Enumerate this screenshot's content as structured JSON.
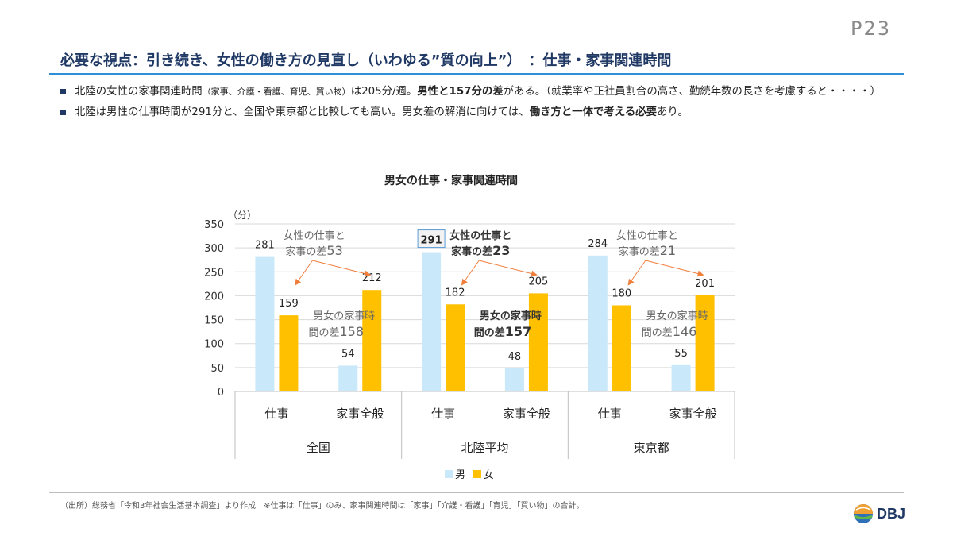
{
  "page": {
    "number": "P23"
  },
  "title": "必要な視点：引き続き、女性の働き方の見直し（いわゆる”質の向上”）　：仕事・家事関連時間",
  "bullets": [
    {
      "parts": [
        {
          "text": "北陸の女性の家事関連時間",
          "style": "normal"
        },
        {
          "text": "（家事、介護・看護、育児、買い物）",
          "style": "small"
        },
        {
          "text": "は205分/週。",
          "style": "normal"
        },
        {
          "text": "男性と157分の差",
          "style": "bold"
        },
        {
          "text": "がある。（就業率や正社員割合の高さ、勤続年数の長さを考慮すると・・・・）",
          "style": "normal"
        }
      ]
    },
    {
      "parts": [
        {
          "text": "北陸は男性の仕事時間が291分と、全国や東京都と比較しても高い。男女差の解消に向けては、",
          "style": "normal"
        },
        {
          "text": "働き方と一体で考える必要",
          "style": "bold"
        },
        {
          "text": "あり。",
          "style": "normal"
        }
      ]
    }
  ],
  "chart_data": {
    "type": "bar",
    "title": "男女の仕事・家事関連時間",
    "ylabel": "（分）",
    "ylim": [
      0,
      350
    ],
    "yticks": [
      0,
      50,
      100,
      150,
      200,
      250,
      300,
      350
    ],
    "regions": [
      {
        "name": "全国",
        "categories": [
          "仕事",
          "家事全般"
        ]
      },
      {
        "name": "北陸平均",
        "categories": [
          "仕事",
          "家事全般"
        ]
      },
      {
        "name": "東京都",
        "categories": [
          "仕事",
          "家事全般"
        ]
      }
    ],
    "series": [
      {
        "name": "男",
        "color": "#c9e8fa",
        "values": [
          281,
          54,
          291,
          48,
          284,
          55
        ]
      },
      {
        "name": "女",
        "color": "#ffc000",
        "values": [
          159,
          212,
          182,
          205,
          180,
          201
        ]
      }
    ],
    "highlight": {
      "series": 0,
      "index": 2
    },
    "legend_position": "bottom",
    "annotations": [
      {
        "region": 0,
        "label": "女性の仕事と家事の差",
        "line1": "女性の仕事と",
        "line2": "家事の差",
        "value": "53",
        "bold": false
      },
      {
        "region": 1,
        "label": "女性の仕事と家事の差",
        "line1": "女性の仕事と",
        "line2": "家事の差",
        "value": "23",
        "bold": true
      },
      {
        "region": 2,
        "label": "女性の仕事と家事の差",
        "line1": "女性の仕事と",
        "line2": "家事の差",
        "value": "21",
        "bold": false
      }
    ],
    "gap_annotations": [
      {
        "region": 0,
        "line1": "男女の家事時",
        "line2": "間の差",
        "value": "158",
        "bold": false
      },
      {
        "region": 1,
        "line1": "男女の家事時",
        "line2": "間の差",
        "value": "157",
        "bold": true
      },
      {
        "region": 2,
        "line1": "男女の家事時",
        "line2": "間の差",
        "value": "146",
        "bold": false
      }
    ]
  },
  "footnote": "（出所）総務省「令和3年社会生活基本調査」より作成　※仕事は「仕事」のみ、家事関連時間は「家事」「介護・看護」「育児」「買い物」の合計。",
  "logo": {
    "text": "DBJ"
  },
  "colors": {
    "title": "#1f3864",
    "accent": "#2e8fd6",
    "arrow": "#f07f3c"
  }
}
